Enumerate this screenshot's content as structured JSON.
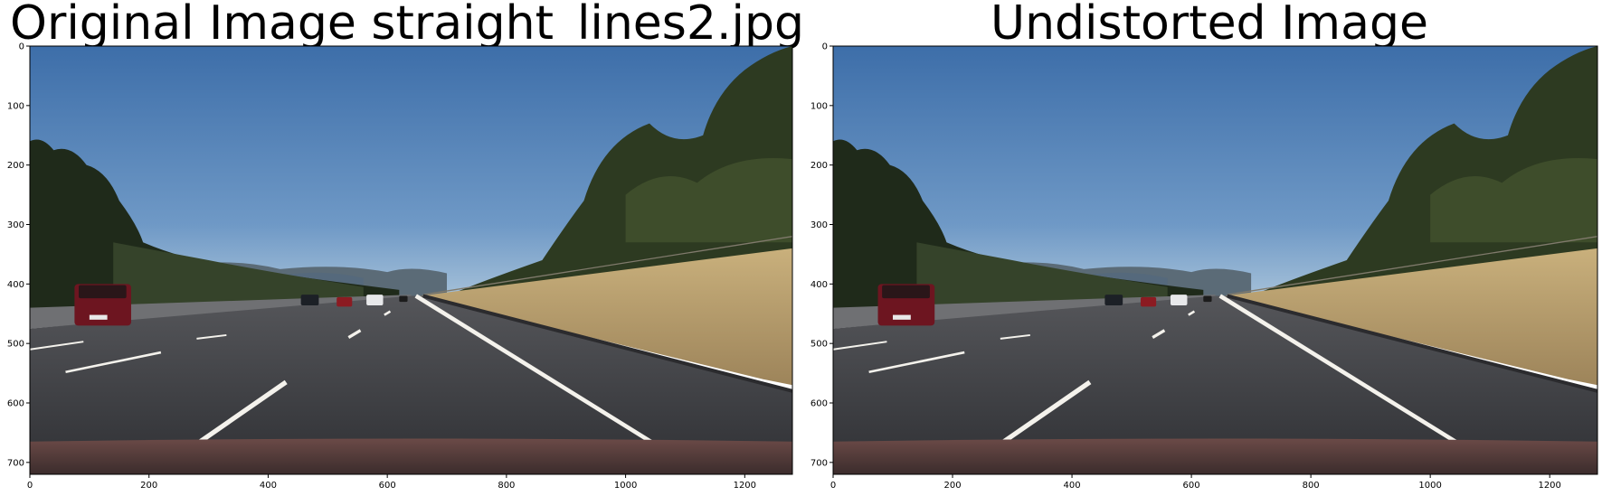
{
  "figure": {
    "panels": [
      {
        "title": "Original Image straight_lines2.jpg",
        "xticks": [
          0,
          200,
          400,
          600,
          800,
          1000,
          1200
        ],
        "yticks": [
          0,
          100,
          200,
          300,
          400,
          500,
          600,
          700
        ],
        "image": {
          "description_icon": "road-photo",
          "xlim": [
            0,
            1280
          ],
          "ylim": [
            720,
            0
          ]
        }
      },
      {
        "title": "Undistorted Image",
        "xticks": [
          0,
          200,
          400,
          600,
          800,
          1000,
          1200
        ],
        "yticks": [
          0,
          100,
          200,
          300,
          400,
          500,
          600,
          700
        ],
        "image": {
          "description_icon": "road-photo",
          "xlim": [
            0,
            1280
          ],
          "ylim": [
            720,
            0
          ]
        }
      }
    ]
  },
  "colors": {
    "sky_top": "#3f6fa8",
    "sky_bottom": "#9dbbd6",
    "road": "#38393e",
    "grass": "#b59c6b",
    "trees": "#27301f",
    "lane": "#f4f2ec"
  }
}
